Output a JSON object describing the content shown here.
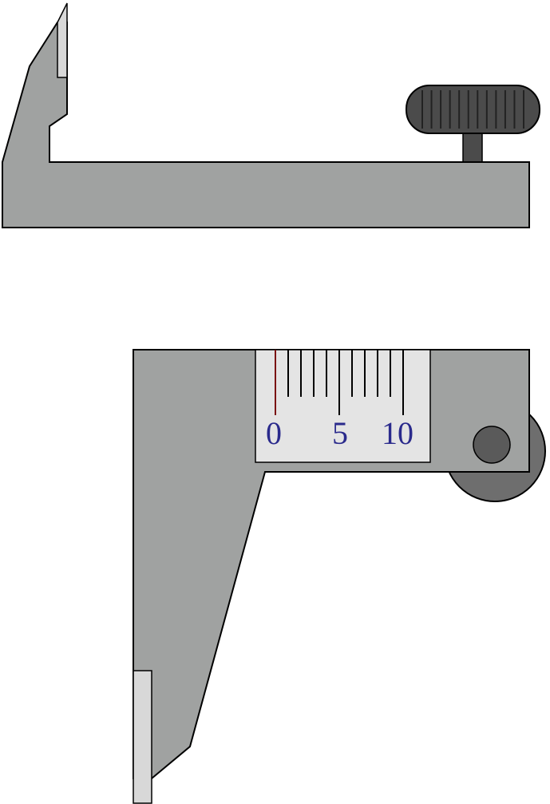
{
  "colors": {
    "background": "#ffffff",
    "body_gray": "#a0a2a1",
    "jaw_tip_light": "#d8d8d8",
    "scale_plate": "#e4e4e4",
    "knob_dark": "#4b4b4b",
    "knob_ridge": "#222222",
    "wheel_gray": "#6e6e6e",
    "screw_gray": "#5a5a5a",
    "number_color": "#2a2a8c",
    "zero_tick_color": "#7a1010",
    "outline": "#000000"
  },
  "vernier_scale": {
    "division_count": 10,
    "labels": [
      "0",
      "5",
      "10"
    ]
  },
  "icons": {
    "knob": "thumb-screw-knob-icon",
    "wheel": "thumb-wheel-icon"
  }
}
